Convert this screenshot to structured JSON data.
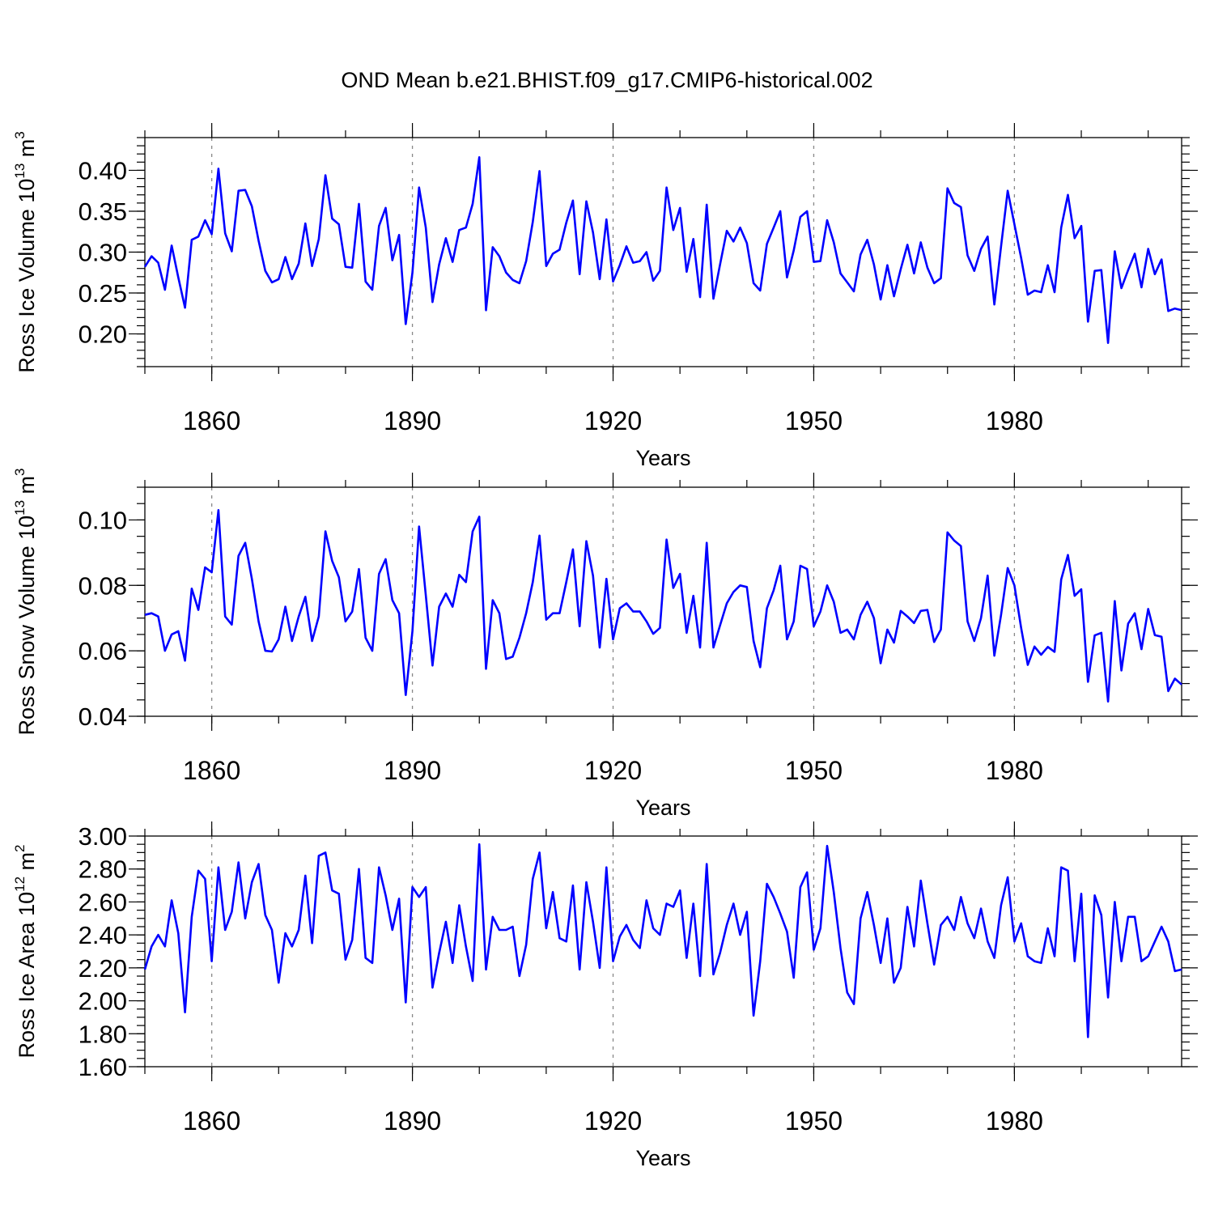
{
  "title": "OND Mean b.e21.BHIST.f09_g17.CMIP6-historical.002",
  "chart_data": [
    {
      "type": "line",
      "ylabel": {
        "base": "Ross Ice Volume 10",
        "exp": "13",
        "unit": " m",
        "unit_exp": "3"
      },
      "xlabel": "Years",
      "xlim": [
        1850,
        2005
      ],
      "ylim": [
        0.16,
        0.44
      ],
      "yticks": [
        0.2,
        0.25,
        0.3,
        0.35,
        0.4
      ],
      "ytick_labels": [
        "0.20",
        "0.25",
        "0.30",
        "0.35",
        "0.40"
      ],
      "yminor_step": 0.01,
      "xticks": [
        1860,
        1890,
        1920,
        1950,
        1980
      ],
      "xtick_labels": [
        "1860",
        "1890",
        "1920",
        "1950",
        "1980"
      ],
      "xminor_step": 10,
      "x_start": 1850,
      "color": "#0000ff",
      "values": [
        0.282,
        0.295,
        0.287,
        0.254,
        0.308,
        0.269,
        0.232,
        0.315,
        0.319,
        0.339,
        0.322,
        0.402,
        0.323,
        0.301,
        0.375,
        0.376,
        0.356,
        0.314,
        0.277,
        0.263,
        0.267,
        0.294,
        0.267,
        0.286,
        0.335,
        0.283,
        0.316,
        0.394,
        0.341,
        0.334,
        0.282,
        0.281,
        0.359,
        0.264,
        0.254,
        0.332,
        0.354,
        0.29,
        0.321,
        0.212,
        0.275,
        0.379,
        0.33,
        0.239,
        0.285,
        0.317,
        0.288,
        0.327,
        0.33,
        0.359,
        0.416,
        0.229,
        0.306,
        0.295,
        0.275,
        0.266,
        0.262,
        0.289,
        0.337,
        0.399,
        0.283,
        0.298,
        0.303,
        0.336,
        0.363,
        0.273,
        0.362,
        0.324,
        0.267,
        0.34,
        0.264,
        0.284,
        0.307,
        0.287,
        0.289,
        0.3,
        0.265,
        0.277,
        0.379,
        0.327,
        0.354,
        0.276,
        0.316,
        0.245,
        0.358,
        0.243,
        0.285,
        0.326,
        0.313,
        0.33,
        0.311,
        0.262,
        0.253,
        0.31,
        0.33,
        0.35,
        0.269,
        0.302,
        0.343,
        0.35,
        0.288,
        0.289,
        0.339,
        0.312,
        0.274,
        0.263,
        0.252,
        0.297,
        0.315,
        0.285,
        0.242,
        0.284,
        0.246,
        0.279,
        0.309,
        0.274,
        0.312,
        0.281,
        0.262,
        0.268,
        0.378,
        0.36,
        0.355,
        0.296,
        0.277,
        0.304,
        0.319,
        0.236,
        0.307,
        0.375,
        0.334,
        0.293,
        0.248,
        0.253,
        0.251,
        0.284,
        0.251,
        0.33,
        0.37,
        0.317,
        0.332,
        0.215,
        0.277,
        0.278,
        0.189,
        0.301,
        0.256,
        0.278,
        0.298,
        0.257,
        0.304,
        0.273,
        0.291,
        0.228,
        0.231,
        0.229
      ]
    },
    {
      "type": "line",
      "ylabel": {
        "base": "Ross Snow Volume 10",
        "exp": "13",
        "unit": " m",
        "unit_exp": "3"
      },
      "xlabel": "Years",
      "xlim": [
        1850,
        2005
      ],
      "ylim": [
        0.04,
        0.11
      ],
      "yticks": [
        0.04,
        0.06,
        0.08,
        0.1
      ],
      "ytick_labels": [
        "0.04",
        "0.06",
        "0.08",
        "0.10"
      ],
      "yminor_step": 0.005,
      "xticks": [
        1860,
        1890,
        1920,
        1950,
        1980
      ],
      "xtick_labels": [
        "1860",
        "1890",
        "1920",
        "1950",
        "1980"
      ],
      "xminor_step": 10,
      "x_start": 1850,
      "color": "#0000ff",
      "values": [
        0.071,
        0.0715,
        0.0705,
        0.06,
        0.065,
        0.066,
        0.057,
        0.079,
        0.0725,
        0.0855,
        0.084,
        0.103,
        0.0705,
        0.068,
        0.089,
        0.093,
        0.082,
        0.069,
        0.06,
        0.0598,
        0.0635,
        0.0735,
        0.063,
        0.0705,
        0.0765,
        0.063,
        0.0705,
        0.0965,
        0.0875,
        0.0825,
        0.069,
        0.072,
        0.085,
        0.064,
        0.06,
        0.0835,
        0.088,
        0.0755,
        0.0715,
        0.0465,
        0.066,
        0.098,
        0.077,
        0.0555,
        0.0735,
        0.0775,
        0.0735,
        0.0832,
        0.081,
        0.0965,
        0.101,
        0.0545,
        0.0755,
        0.0715,
        0.0575,
        0.0582,
        0.064,
        0.0715,
        0.081,
        0.0952,
        0.0695,
        0.0715,
        0.0715,
        0.081,
        0.091,
        0.0675,
        0.0935,
        0.083,
        0.061,
        0.082,
        0.0635,
        0.073,
        0.0745,
        0.072,
        0.072,
        0.069,
        0.0652,
        0.067,
        0.094,
        0.0792,
        0.0835,
        0.0655,
        0.0768,
        0.061,
        0.093,
        0.061,
        0.0678,
        0.0745,
        0.078,
        0.08,
        0.0795,
        0.063,
        0.055,
        0.073,
        0.0785,
        0.086,
        0.0635,
        0.069,
        0.086,
        0.085,
        0.0675,
        0.072,
        0.08,
        0.075,
        0.0655,
        0.0665,
        0.0635,
        0.071,
        0.075,
        0.07,
        0.0562,
        0.0665,
        0.0625,
        0.0722,
        0.0705,
        0.0685,
        0.0722,
        0.0725,
        0.0627,
        0.0665,
        0.0962,
        0.0937,
        0.092,
        0.069,
        0.063,
        0.07,
        0.083,
        0.0585,
        0.071,
        0.0853,
        0.08,
        0.067,
        0.0557,
        0.0613,
        0.0588,
        0.0612,
        0.0597,
        0.0818,
        0.0893,
        0.0768,
        0.0788,
        0.0505,
        0.0647,
        0.0655,
        0.0445,
        0.0752,
        0.054,
        0.0683,
        0.0715,
        0.0605,
        0.0728,
        0.0648,
        0.0643,
        0.0477,
        0.0515,
        0.0497
      ]
    },
    {
      "type": "line",
      "ylabel": {
        "base": "Ross Ice Area 10",
        "exp": "12",
        "unit": " m",
        "unit_exp": "2"
      },
      "xlabel": "Years",
      "xlim": [
        1850,
        2005
      ],
      "ylim": [
        1.6,
        3.0
      ],
      "yticks": [
        1.6,
        1.8,
        2.0,
        2.2,
        2.4,
        2.6,
        2.8,
        3.0
      ],
      "ytick_labels": [
        "1.60",
        "1.80",
        "2.00",
        "2.20",
        "2.40",
        "2.60",
        "2.80",
        "3.00"
      ],
      "yminor_step": 0.05,
      "xticks": [
        1860,
        1890,
        1920,
        1950,
        1980
      ],
      "xtick_labels": [
        "1860",
        "1890",
        "1920",
        "1950",
        "1980"
      ],
      "xminor_step": 10,
      "x_start": 1850,
      "color": "#0000ff",
      "values": [
        2.19,
        2.33,
        2.4,
        2.33,
        2.61,
        2.41,
        1.93,
        2.51,
        2.79,
        2.74,
        2.24,
        2.81,
        2.43,
        2.54,
        2.84,
        2.5,
        2.72,
        2.83,
        2.52,
        2.43,
        2.11,
        2.41,
        2.33,
        2.43,
        2.76,
        2.35,
        2.88,
        2.9,
        2.67,
        2.65,
        2.25,
        2.37,
        2.8,
        2.26,
        2.23,
        2.81,
        2.64,
        2.43,
        2.62,
        1.99,
        2.69,
        2.63,
        2.69,
        2.08,
        2.29,
        2.48,
        2.23,
        2.58,
        2.33,
        2.12,
        2.95,
        2.19,
        2.51,
        2.43,
        2.43,
        2.45,
        2.15,
        2.34,
        2.74,
        2.9,
        2.44,
        2.66,
        2.38,
        2.36,
        2.7,
        2.19,
        2.72,
        2.48,
        2.2,
        2.81,
        2.24,
        2.39,
        2.46,
        2.37,
        2.32,
        2.61,
        2.44,
        2.4,
        2.59,
        2.57,
        2.67,
        2.26,
        2.59,
        2.15,
        2.83,
        2.16,
        2.29,
        2.46,
        2.59,
        2.4,
        2.54,
        1.91,
        2.24,
        2.71,
        2.63,
        2.53,
        2.42,
        2.14,
        2.69,
        2.78,
        2.31,
        2.44,
        2.94,
        2.66,
        2.32,
        2.05,
        1.98,
        2.5,
        2.66,
        2.46,
        2.23,
        2.5,
        2.11,
        2.2,
        2.57,
        2.33,
        2.73,
        2.47,
        2.22,
        2.46,
        2.51,
        2.43,
        2.63,
        2.47,
        2.38,
        2.56,
        2.36,
        2.26,
        2.58,
        2.75,
        2.36,
        2.47,
        2.27,
        2.24,
        2.23,
        2.44,
        2.27,
        2.81,
        2.79,
        2.24,
        2.65,
        1.78,
        2.64,
        2.52,
        2.02,
        2.6,
        2.24,
        2.51,
        2.51,
        2.24,
        2.27,
        2.36,
        2.45,
        2.36,
        2.18,
        2.19
      ]
    }
  ]
}
